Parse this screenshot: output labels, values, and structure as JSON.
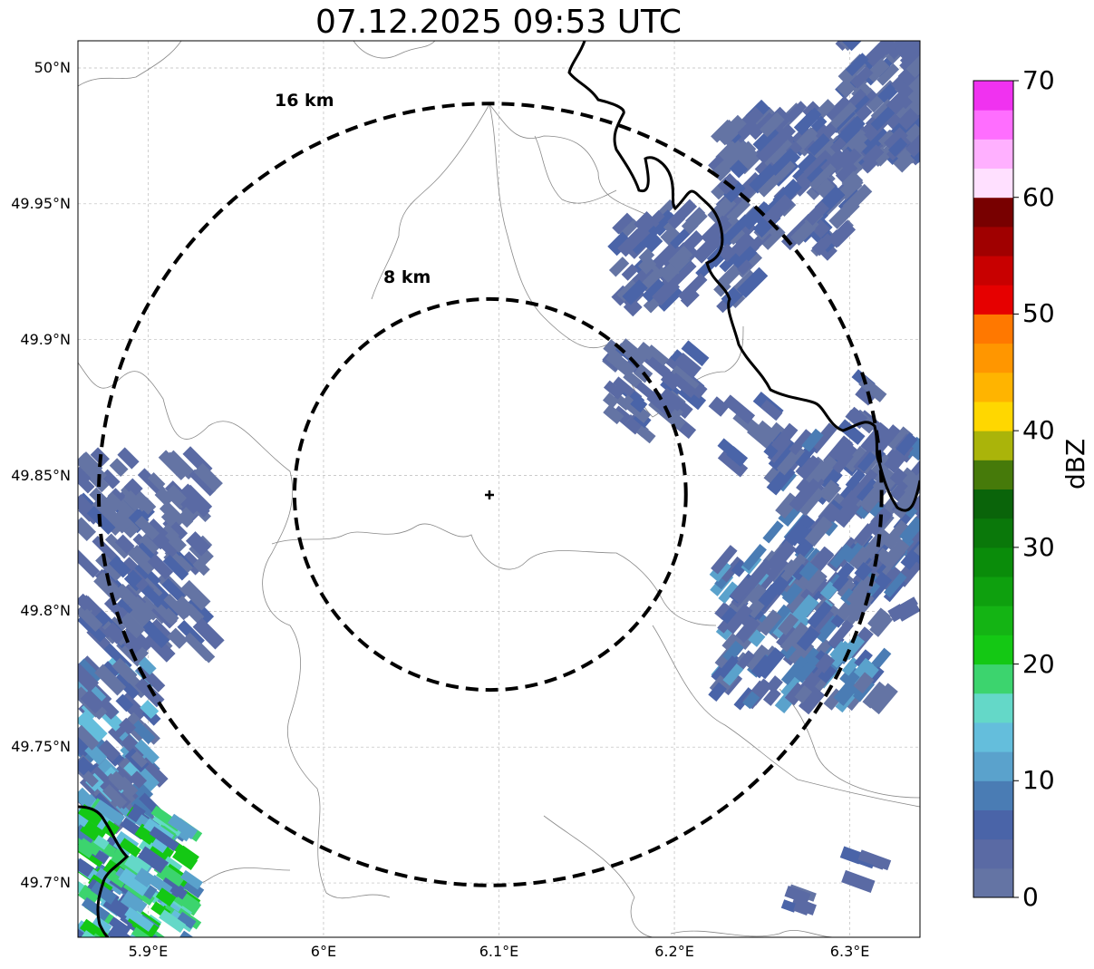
{
  "title": "07.12.2025 09:53 UTC",
  "map": {
    "radar_site": {
      "lon": 6.095,
      "lat": 49.843
    },
    "lon_range": [
      5.86,
      6.34
    ],
    "lat_range": [
      49.68,
      50.01
    ],
    "lon_ticks": [
      {
        "value": 5.9,
        "label": "5.9°E"
      },
      {
        "value": 6.0,
        "label": "6°E"
      },
      {
        "value": 6.1,
        "label": "6.1°E"
      },
      {
        "value": 6.2,
        "label": "6.2°E"
      },
      {
        "value": 6.3,
        "label": "6.3°E"
      }
    ],
    "lat_ticks": [
      {
        "value": 50.0,
        "label": "50°N"
      },
      {
        "value": 49.95,
        "label": "49.95°N"
      },
      {
        "value": 49.9,
        "label": "49.9°N"
      },
      {
        "value": 49.85,
        "label": "49.85°N"
      },
      {
        "value": 49.8,
        "label": "49.8°N"
      },
      {
        "value": 49.75,
        "label": "49.75°N"
      },
      {
        "value": 49.7,
        "label": "49.7°N"
      }
    ],
    "range_rings": [
      {
        "radius_km": 16,
        "label": "16 km"
      },
      {
        "radius_km": 8,
        "label": "8 km"
      }
    ],
    "grid": true,
    "borders_color": "#000000",
    "regions_color": "#808080"
  },
  "colorbar": {
    "label": "dBZ",
    "min": 0,
    "max": 70,
    "ticks": [
      {
        "value": 0,
        "label": "0"
      },
      {
        "value": 10,
        "label": "10"
      },
      {
        "value": 20,
        "label": "20"
      },
      {
        "value": 30,
        "label": "30"
      },
      {
        "value": 40,
        "label": "40"
      },
      {
        "value": 50,
        "label": "50"
      },
      {
        "value": 60,
        "label": "60"
      },
      {
        "value": 70,
        "label": "70"
      }
    ],
    "colors": [
      "#6474a4",
      "#5a6aa4",
      "#4a64a8",
      "#4a7cb4",
      "#5aa2cc",
      "#64bedc",
      "#64d8c8",
      "#3cd46e",
      "#14c814",
      "#14b414",
      "#0ea00e",
      "#0a8c0a",
      "#0a780a",
      "#0a640a",
      "#467a0a",
      "#aab40a",
      "#ffd700",
      "#ffb400",
      "#ff9600",
      "#ff7800",
      "#e60000",
      "#c80000",
      "#a00000",
      "#780000",
      "#ffe0ff",
      "#ffb0ff",
      "#ff6eff",
      "#f032f0"
    ]
  }
}
